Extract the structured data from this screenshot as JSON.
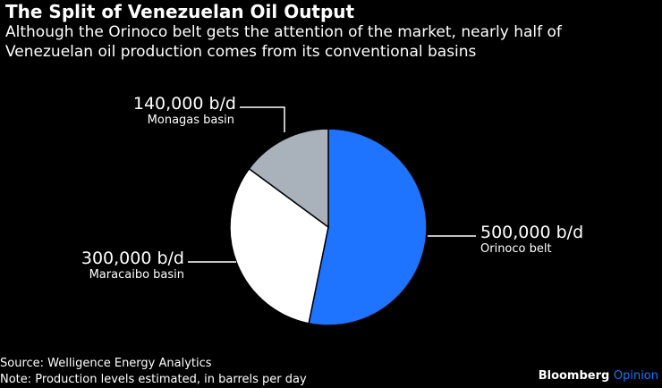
{
  "header": {
    "title": "The Split of Venezuelan Oil Output",
    "subtitle_line1": "Although the Orinoco belt gets the attention of the market, nearly half of",
    "subtitle_line2": "Venezuelan oil production comes from its conventional basins"
  },
  "footer": {
    "source": "Source: Welligence Energy Analytics",
    "note": "Note: Production levels estimated, in barrels per day",
    "brand_part1": "Bloomberg",
    "brand_part2": "Opinion"
  },
  "colors": {
    "background": "#000000",
    "text": "#ffffff",
    "orinoco": "#1e73ff",
    "maracaibo": "#ffffff",
    "monagas": "#a9b1ba",
    "brand_accent": "#1e73ff"
  },
  "chart_data": {
    "type": "pie",
    "unit": "b/d",
    "slices": [
      {
        "name": "Orinoco belt",
        "value": 500000,
        "label": "500,000 b/d",
        "color": "#1e73ff"
      },
      {
        "name": "Maracaibo basin",
        "value": 300000,
        "label": "300,000 b/d",
        "color": "#ffffff"
      },
      {
        "name": "Monagas basin",
        "value": 140000,
        "label": "140,000 b/d",
        "color": "#a9b1ba"
      }
    ]
  }
}
